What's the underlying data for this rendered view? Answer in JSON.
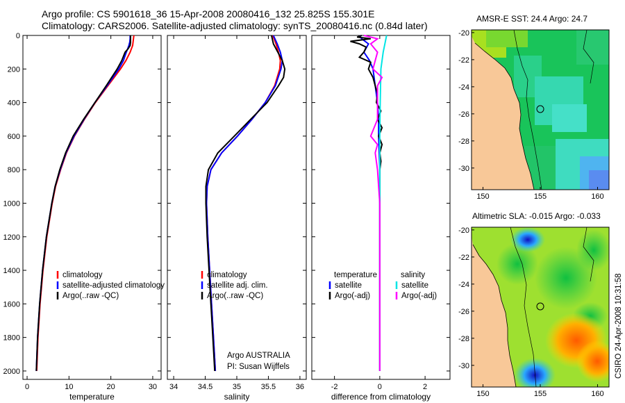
{
  "header": {
    "line1": "Argo profile: CS 5901618_36 15-Apr-2008 20080416_132 25.825S 155.301E",
    "line2": "Climatology: CARS2006. Satellite-adjusted climatology: synTS_20080416.nc (0.84d later)"
  },
  "footer": {
    "argo_org": "Argo AUSTRALIA",
    "pi": "PI: Susan Wijffels",
    "credit": "CSIRO 24-Apr-2008 10:31:58"
  },
  "colors": {
    "climatology": "#ff0000",
    "satellite": "#0000ff",
    "argo": "#000000",
    "sat_diff_salinity": "#00e5e5",
    "argo_diff_salinity": "#ff00ff",
    "land": "#f8c898"
  },
  "chart_data": [
    {
      "type": "line",
      "xlabel": "temperature",
      "ylabel": "",
      "xlim": [
        -1,
        32
      ],
      "ylim": [
        2050,
        0
      ],
      "yreversed": true,
      "x_ticks": [
        "0",
        "10",
        "20",
        "30"
      ],
      "y_ticks": [
        "0",
        "200",
        "400",
        "600",
        "800",
        "1000",
        "1200",
        "1400",
        "1600",
        "1800",
        "2000"
      ],
      "legend": [
        "climatology",
        "satellite-adjusted climatology",
        "Argo(..raw -QC)"
      ],
      "series": [
        {
          "name": "climatology",
          "depth": [
            0,
            20,
            40,
            60,
            80,
            100,
            150,
            200,
            300,
            400,
            500,
            600,
            700,
            800,
            900,
            1000,
            1200,
            1400,
            1600,
            1800,
            2000
          ],
          "values": [
            25.5,
            25.4,
            25.3,
            25.2,
            24.9,
            24.6,
            23.6,
            22.3,
            19.3,
            16.3,
            13.7,
            11.3,
            9.4,
            8.0,
            6.8,
            6.0,
            4.7,
            3.8,
            3.1,
            2.6,
            2.3
          ]
        },
        {
          "name": "satellite-adjusted climatology",
          "depth": [
            0,
            20,
            40,
            60,
            80,
            100,
            150,
            200,
            300,
            400,
            500,
            600,
            700,
            800,
            900,
            1000,
            1200,
            1400,
            1600,
            1800,
            2000
          ],
          "values": [
            24.6,
            24.6,
            24.5,
            24.3,
            24.0,
            23.7,
            23.0,
            21.9,
            19.1,
            16.2,
            13.6,
            11.2,
            9.3,
            7.9,
            6.7,
            5.9,
            4.6,
            3.7,
            3.0,
            2.5,
            2.2
          ]
        },
        {
          "name": "Argo(..raw -QC)",
          "depth": [
            0,
            20,
            40,
            60,
            80,
            100,
            150,
            200,
            300,
            400,
            500,
            600,
            700,
            800,
            900,
            1000,
            1200,
            1400,
            1600,
            1800,
            2000
          ],
          "values": [
            24.7,
            24.7,
            24.7,
            24.6,
            24.1,
            23.4,
            22.6,
            21.5,
            18.9,
            16.2,
            13.5,
            11.0,
            9.2,
            7.8,
            6.7,
            5.9,
            4.6,
            3.7,
            3.0,
            2.5,
            2.2
          ]
        }
      ]
    },
    {
      "type": "line",
      "xlabel": "salinity",
      "xlim": [
        33.9,
        36.1
      ],
      "ylim": [
        2050,
        0
      ],
      "yreversed": true,
      "x_ticks": [
        "34",
        "34.5",
        "35",
        "35.5",
        "36"
      ],
      "legend": [
        "climatology",
        "satellite adj. clim.",
        "Argo(..raw -QC)"
      ],
      "series": [
        {
          "name": "climatology",
          "depth": [
            0,
            50,
            100,
            150,
            200,
            300,
            400,
            500,
            600,
            700,
            800,
            900,
            1000,
            1200,
            1400,
            1600,
            1800,
            2000
          ],
          "values": [
            35.57,
            35.62,
            35.66,
            35.69,
            35.68,
            35.6,
            35.45,
            35.24,
            35.01,
            34.76,
            34.59,
            34.53,
            34.52,
            34.54,
            34.57,
            34.6,
            34.63,
            34.66
          ]
        },
        {
          "name": "satellite adj. clim.",
          "depth": [
            0,
            50,
            100,
            150,
            200,
            300,
            400,
            500,
            600,
            700,
            800,
            900,
            1000,
            1200,
            1400,
            1600,
            1800,
            2000
          ],
          "values": [
            35.58,
            35.64,
            35.69,
            35.72,
            35.7,
            35.61,
            35.45,
            35.24,
            35.01,
            34.76,
            34.59,
            34.53,
            34.52,
            34.54,
            34.57,
            34.6,
            34.63,
            34.66
          ]
        },
        {
          "name": "Argo(..raw -QC)",
          "depth": [
            0,
            50,
            100,
            150,
            200,
            250,
            300,
            400,
            500,
            600,
            700,
            800,
            900,
            1000,
            1200,
            1400,
            1600,
            1800,
            2000
          ],
          "values": [
            35.55,
            35.58,
            35.65,
            35.72,
            35.76,
            35.74,
            35.66,
            35.48,
            35.22,
            34.96,
            34.7,
            34.55,
            34.51,
            34.51,
            34.53,
            34.56,
            34.59,
            34.62,
            34.65
          ]
        }
      ]
    },
    {
      "type": "line",
      "xlabel": "difference from climatology",
      "xlim": [
        -3,
        3.1
      ],
      "ylim": [
        2050,
        0
      ],
      "yreversed": true,
      "x_ticks": [
        "-2",
        "0",
        "2"
      ],
      "legend_groups": [
        {
          "title": "temperature",
          "items": [
            "satellite",
            "Argo(-adj)"
          ]
        },
        {
          "title": "salinity",
          "items": [
            "satellite",
            "Argo(-adj)"
          ]
        }
      ],
      "series": [
        {
          "name": "temperature satellite",
          "depth": [
            0,
            20,
            50,
            100,
            150,
            200,
            300,
            400,
            500,
            600,
            800,
            1000,
            1500,
            2000
          ],
          "values": [
            -0.9,
            -0.8,
            -0.5,
            -0.7,
            -0.45,
            -0.3,
            -0.2,
            -0.1,
            -0.05,
            -0.05,
            0,
            0,
            0,
            0
          ]
        },
        {
          "name": "temperature Argo(-adj)",
          "depth": [
            0,
            10,
            20,
            35,
            50,
            70,
            100,
            130,
            160,
            200,
            250,
            300,
            350,
            400,
            450,
            500,
            550,
            600,
            650,
            700,
            750,
            800,
            900,
            1000,
            1500,
            2000
          ],
          "values": [
            -0.8,
            -1.0,
            -0.4,
            -1.3,
            -0.9,
            -0.6,
            -0.7,
            -0.9,
            -0.4,
            -0.5,
            -0.3,
            -0.2,
            -0.1,
            -0.15,
            0.05,
            -0.1,
            0.1,
            -0.05,
            0.1,
            0,
            0.05,
            0,
            0,
            0,
            0,
            0
          ]
        },
        {
          "name": "salinity satellite",
          "depth": [
            0,
            100,
            200,
            400,
            600,
            800,
            1000,
            1500,
            2000
          ],
          "values": [
            0.3,
            0.15,
            0.05,
            0.02,
            0,
            0,
            0,
            0,
            0
          ]
        },
        {
          "name": "salinity Argo(-adj)",
          "depth": [
            0,
            20,
            50,
            100,
            150,
            200,
            250,
            300,
            400,
            500,
            600,
            650,
            700,
            800,
            900,
            1000,
            1200,
            1400,
            1600,
            1800,
            2000
          ],
          "values": [
            -0.7,
            -0.1,
            -0.4,
            -0.1,
            -0.2,
            -0.3,
            0.1,
            -0.1,
            -0.1,
            -0.1,
            -0.4,
            -0.1,
            -0.2,
            -0.1,
            -0.05,
            0,
            0,
            0,
            0,
            0,
            0
          ]
        }
      ]
    },
    {
      "type": "heatmap",
      "title": "AMSR-E SST: 24.4 Argo: 24.7",
      "xlim": [
        149,
        161
      ],
      "ylim": [
        -31.6,
        -19.8
      ],
      "x_ticks": [
        "150",
        "155",
        "160"
      ],
      "y_ticks": [
        "-20",
        "-22",
        "-24",
        "-26",
        "-28",
        "-30"
      ],
      "float_position": [
        155.3,
        -25.8
      ]
    },
    {
      "type": "heatmap",
      "title": "Altimetric SLA: -0.015 Argo: -0.033",
      "xlim": [
        149,
        161
      ],
      "ylim": [
        -31.6,
        -19.8
      ],
      "x_ticks": [
        "150",
        "155",
        "160"
      ],
      "y_ticks": [
        "-20",
        "-22",
        "-24",
        "-26",
        "-28",
        "-30"
      ],
      "float_position": [
        155.3,
        -25.8
      ]
    }
  ]
}
